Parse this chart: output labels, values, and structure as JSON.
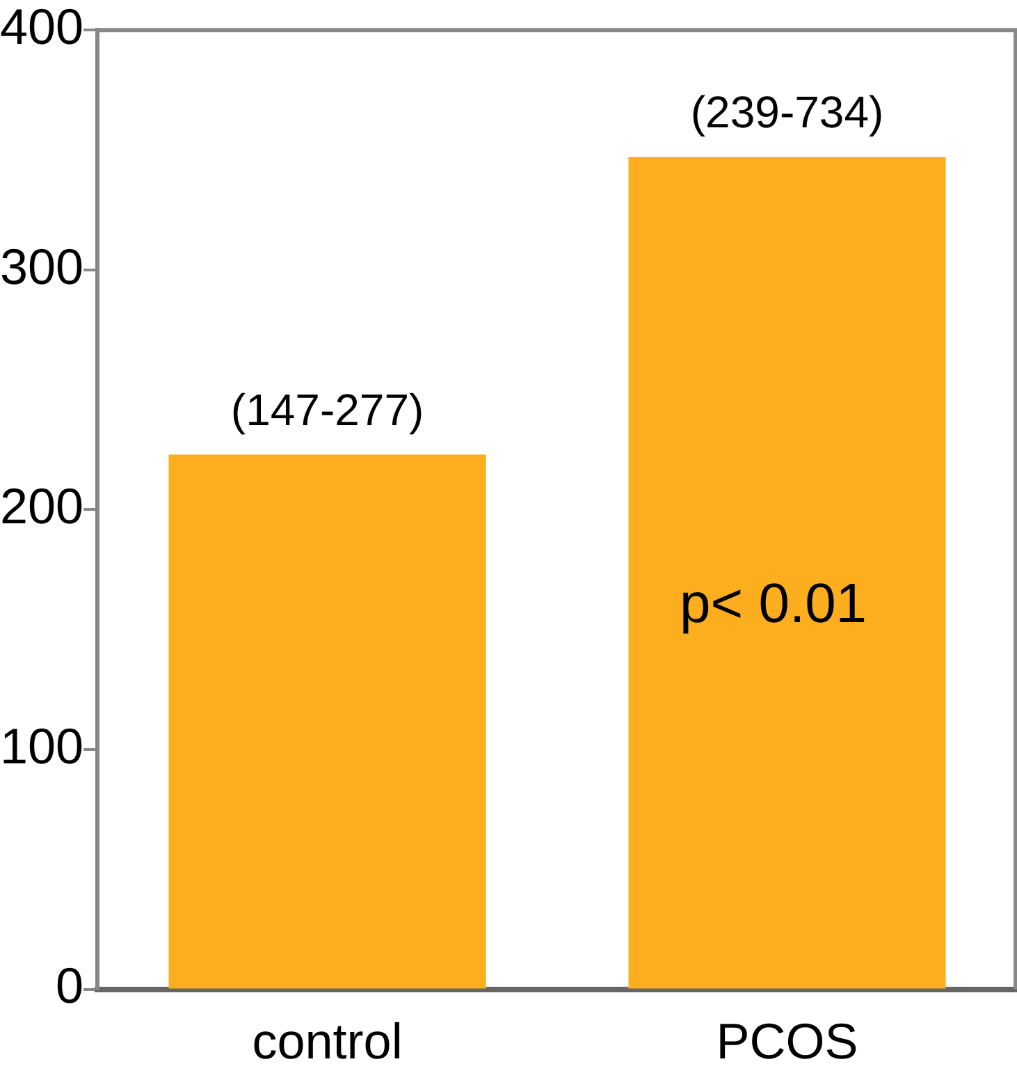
{
  "chart_data": {
    "type": "bar",
    "categories": [
      "control",
      "PCOS"
    ],
    "values": [
      223,
      347
    ],
    "color": "#fcae1e",
    "value_labels": [
      "(147-277)",
      "(239-734)"
    ],
    "ylim": [
      0,
      400
    ],
    "yticks": [
      0,
      100,
      200,
      300,
      400
    ],
    "grid": false,
    "legend": false,
    "annotations": [
      "p< 0.01"
    ]
  }
}
